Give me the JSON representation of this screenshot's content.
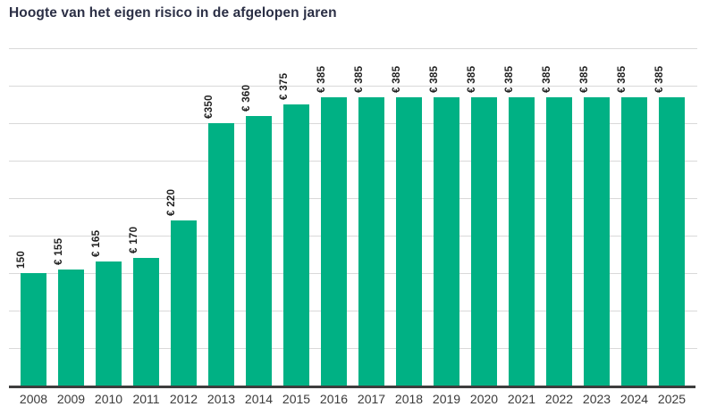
{
  "chart_data": {
    "type": "bar",
    "title": "Hoogte van het eigen risico in de afgelopen jaren",
    "categories": [
      "2008",
      "2009",
      "2010",
      "2011",
      "2012",
      "2013",
      "2014",
      "2015",
      "2016",
      "2017",
      "2018",
      "2019",
      "2020",
      "2021",
      "2022",
      "2023",
      "2024",
      "2025"
    ],
    "values": [
      150,
      155,
      165,
      170,
      220,
      350,
      360,
      375,
      385,
      385,
      385,
      385,
      385,
      385,
      385,
      385,
      385,
      385
    ],
    "bar_labels": [
      "150",
      "€ 155",
      "€ 165",
      "€ 170",
      "€ 220",
      "€350",
      "€ 360",
      "€ 375",
      "€ 385",
      "€ 385",
      "€ 385",
      "€ 385",
      "€ 385",
      "€ 385",
      "€ 385",
      "€ 385",
      "€ 385",
      "€ 385"
    ],
    "bar_label_orientation": "vertical, reads bottom to top",
    "xlabel": "",
    "ylabel": "",
    "ylim": [
      0,
      450
    ],
    "grid_step": 50,
    "grid": "horizontal gridlines only, no y-axis tick labels",
    "legend_position": "none"
  },
  "colors": {
    "bar": "#00b184",
    "gridline": "#d9d9d9",
    "axis_line": "#3d3d3d",
    "title_text": "#2b2f45",
    "bar_label_text": "#1f1f1f",
    "year_label_text": "#3a3a3a",
    "background": "#ffffff"
  }
}
